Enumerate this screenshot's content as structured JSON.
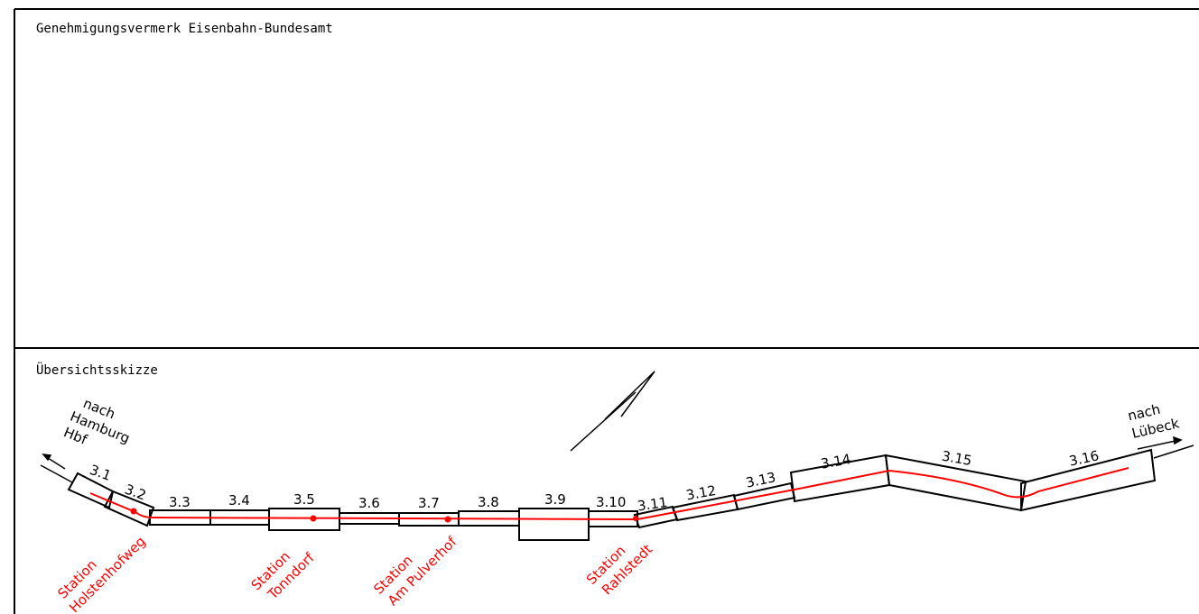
{
  "header": {
    "approval_title": "Genehmigungsvermerk Eisenbahn-Bundesamt",
    "sketch_title": "Übersichtsskizze"
  },
  "directions": {
    "west": [
      "nach",
      "Hamburg",
      "Hbf"
    ],
    "east": [
      "nach",
      "Lübeck"
    ]
  },
  "segments": [
    "3.1",
    "3.2",
    "3.3",
    "3.4",
    "3.5",
    "3.6",
    "3.7",
    "3.8",
    "3.9",
    "3.10",
    "3.11",
    "3.12",
    "3.13",
    "3.14",
    "3.15",
    "3.16"
  ],
  "stations": [
    {
      "line1": "Station",
      "line2": "Holstenhofweg"
    },
    {
      "line1": "Station",
      "line2": "Tonndorf"
    },
    {
      "line1": "Station",
      "line2": "Am Pulverhof"
    },
    {
      "line1": "Station",
      "line2": "Rahlstedt"
    }
  ],
  "colors": {
    "line": "#000000",
    "track": "#ff0000",
    "station_text": "#ff0000"
  },
  "icons": {
    "north_arrow": "north-arrow-icon"
  }
}
